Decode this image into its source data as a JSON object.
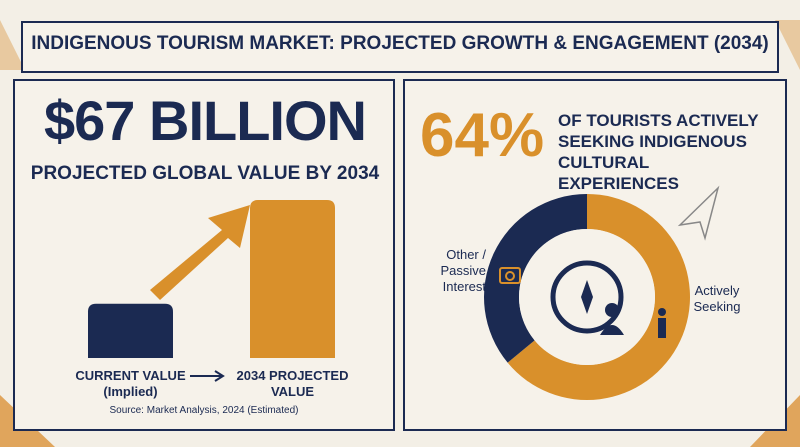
{
  "title": "INDIGENOUS TOURISM MARKET: PROJECTED GROWTH & ENGAGEMENT (2034)",
  "left": {
    "headline": "$67 BILLION",
    "subtitle": "PROJECTED GLOBAL VALUE BY 2034",
    "source": "Source: Market Analysis, 2024 (Estimated)"
  },
  "right": {
    "headline": "64%",
    "text": "OF TOURISTS ACTIVELY SEEKING INDIGENOUS CULTURAL EXPERIENCES"
  },
  "chart_data": [
    {
      "type": "bar",
      "categories": [
        "CURRENT VALUE (Implied)",
        "2034 PROJECTED VALUE"
      ],
      "values": [
        23,
        67
      ],
      "colors": [
        "#1b2a52",
        "#d9902b"
      ]
    },
    {
      "type": "pie",
      "categories": [
        "Actively Seeking",
        "Other / Passive Interest"
      ],
      "values": [
        64,
        36
      ],
      "colors": [
        "#d9902b",
        "#1b2a52"
      ]
    }
  ]
}
